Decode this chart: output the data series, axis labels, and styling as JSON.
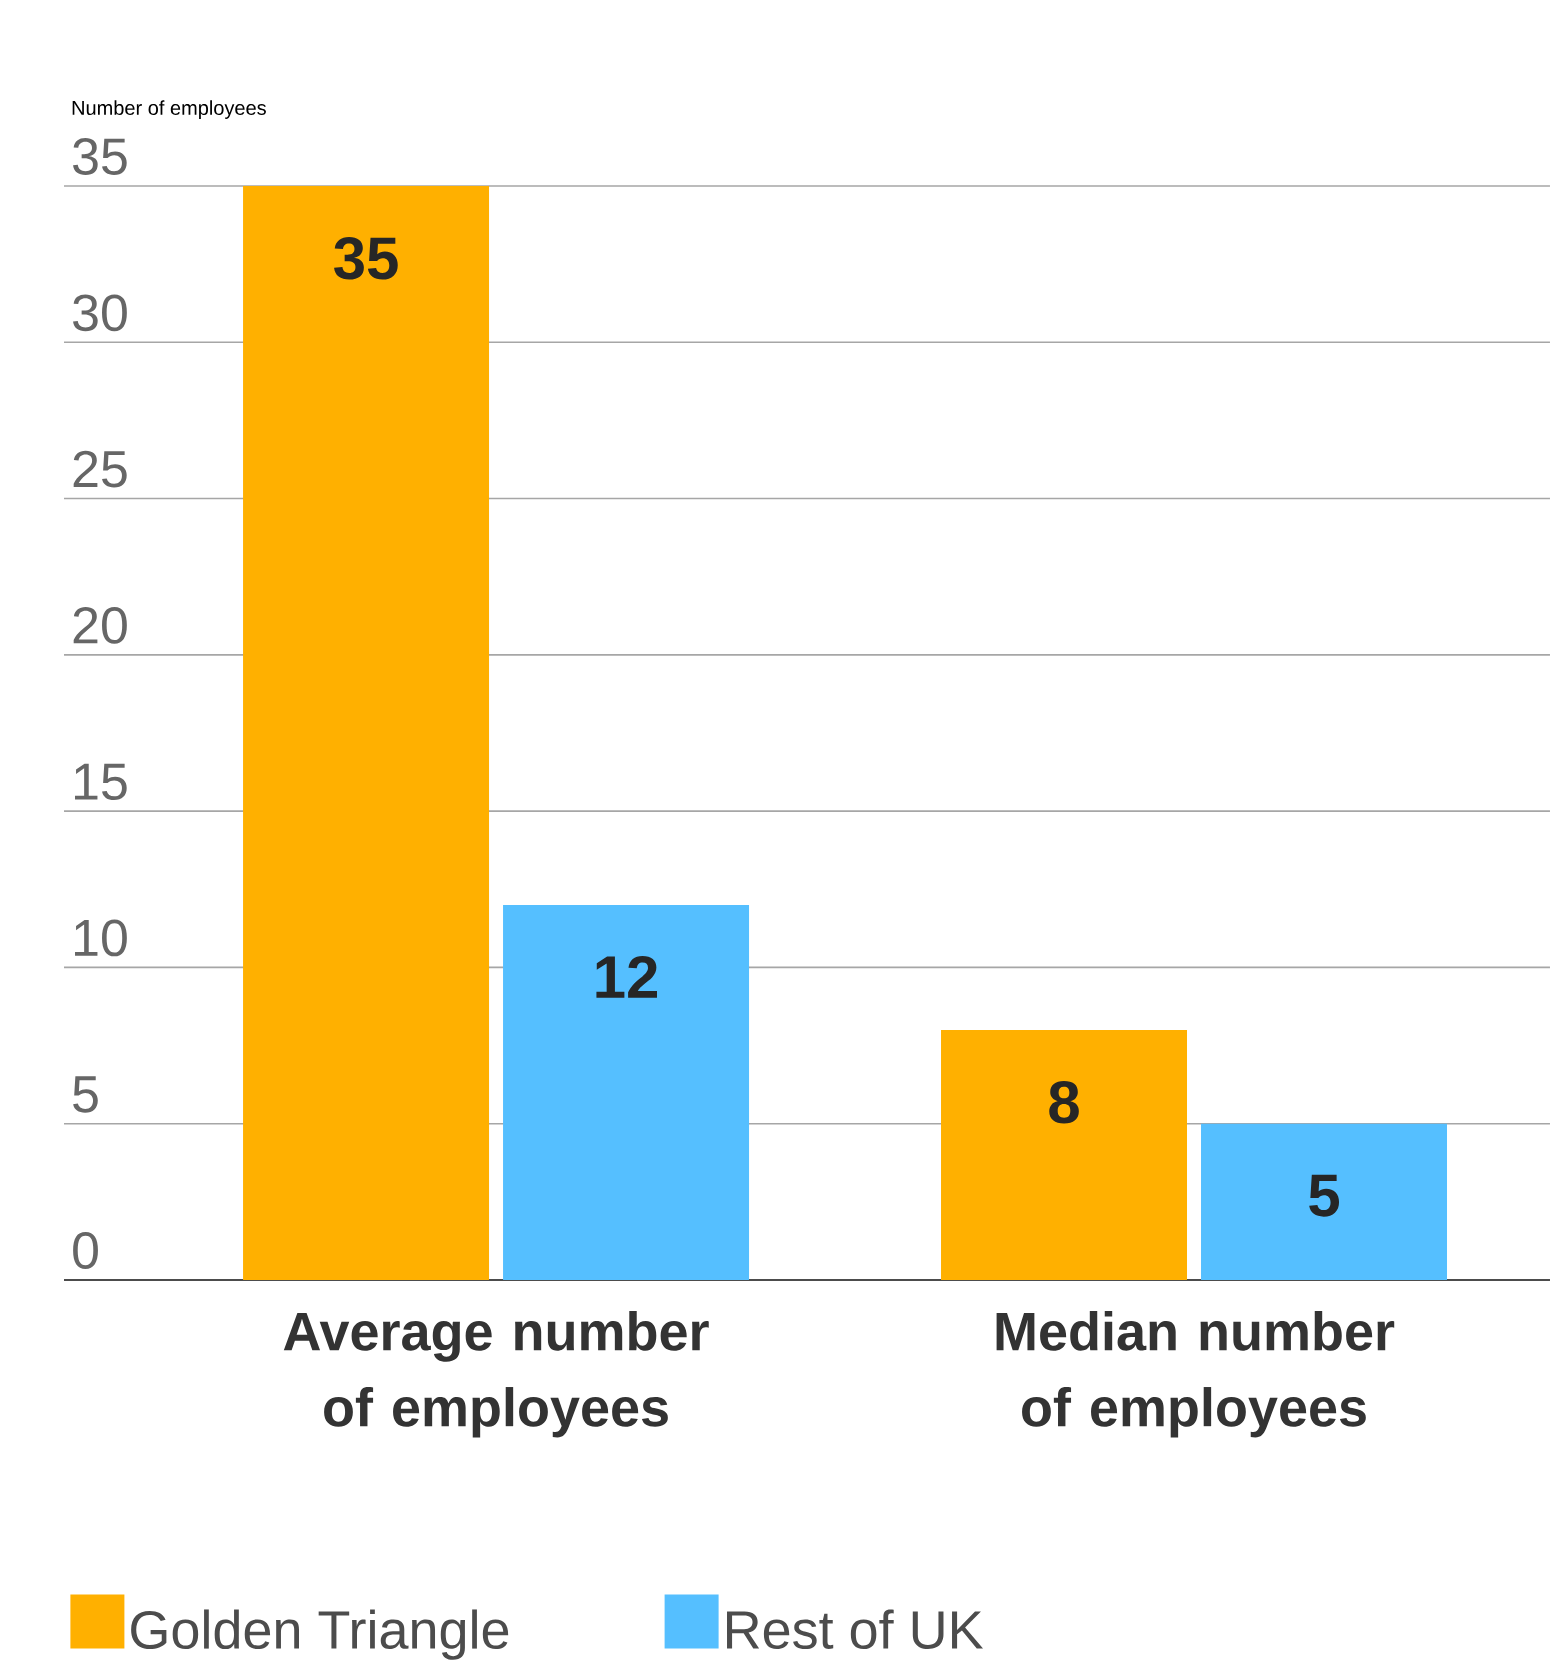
{
  "chart_data": {
    "type": "bar",
    "ylabel": "Number of employees",
    "categories": [
      "Average number of employees",
      "Median number of employees"
    ],
    "series": [
      {
        "name": "Golden Triangle",
        "color": "#ffb000",
        "values": [
          35,
          8
        ]
      },
      {
        "name": "Rest of UK",
        "color": "#55bfff",
        "values": [
          12,
          5
        ]
      }
    ],
    "ylim": [
      0,
      35
    ],
    "yticks": [
      0,
      5,
      10,
      15,
      20,
      25,
      30,
      35
    ],
    "grid": "y",
    "legend": "bottom",
    "data_labels": true
  }
}
